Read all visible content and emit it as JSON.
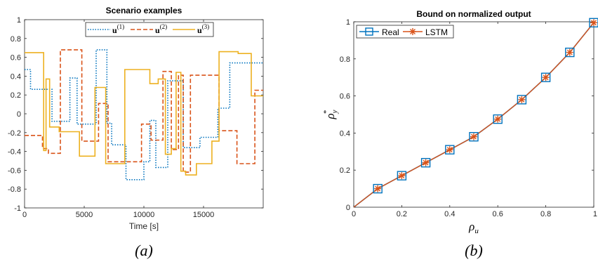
{
  "chart_data": [
    {
      "type": "line",
      "title": "Scenario examples",
      "xlabel": "Time [s]",
      "ylabel": "",
      "xlim": [
        0,
        20000
      ],
      "ylim": [
        -1,
        1
      ],
      "xticks": [
        "0",
        "5000",
        "10000",
        "15000"
      ],
      "yticks": [
        "-1",
        "-0.8",
        "-0.6",
        "-0.4",
        "-0.2",
        "0",
        "0.2",
        "0.4",
        "0.6",
        "0.8",
        "1"
      ],
      "grid": false,
      "legend": "top",
      "series": [
        {
          "name": "u(1)",
          "color": "#0072BD",
          "style": "dotted",
          "points": [
            [
              0,
              0.47
            ],
            [
              500,
              0.47
            ],
            [
              500,
              0.26
            ],
            [
              2300,
              0.26
            ],
            [
              2300,
              -0.08
            ],
            [
              3800,
              -0.08
            ],
            [
              3800,
              0.38
            ],
            [
              4400,
              0.38
            ],
            [
              4400,
              -0.11
            ],
            [
              6000,
              -0.11
            ],
            [
              6000,
              0.68
            ],
            [
              6900,
              0.68
            ],
            [
              6900,
              -0.1
            ],
            [
              7300,
              -0.1
            ],
            [
              7300,
              -0.33
            ],
            [
              8500,
              -0.33
            ],
            [
              8500,
              -0.7
            ],
            [
              10000,
              -0.7
            ],
            [
              10000,
              -0.51
            ],
            [
              10500,
              -0.51
            ],
            [
              10500,
              -0.07
            ],
            [
              11000,
              -0.07
            ],
            [
              11000,
              -0.57
            ],
            [
              12000,
              -0.57
            ],
            [
              12000,
              0.35
            ],
            [
              13300,
              0.35
            ],
            [
              13300,
              -0.36
            ],
            [
              14700,
              -0.36
            ],
            [
              14700,
              -0.25
            ],
            [
              16200,
              -0.25
            ],
            [
              16200,
              0.06
            ],
            [
              17200,
              0.06
            ],
            [
              17200,
              0.54
            ],
            [
              20000,
              0.54
            ]
          ]
        },
        {
          "name": "u(2)",
          "color": "#D95319",
          "style": "dashed",
          "points": [
            [
              0,
              -0.23
            ],
            [
              1500,
              -0.23
            ],
            [
              1500,
              -0.37
            ],
            [
              2000,
              -0.37
            ],
            [
              2000,
              -0.42
            ],
            [
              3000,
              -0.42
            ],
            [
              3000,
              0.68
            ],
            [
              4800,
              0.68
            ],
            [
              4800,
              -0.29
            ],
            [
              6200,
              -0.29
            ],
            [
              6200,
              0.11
            ],
            [
              7000,
              0.11
            ],
            [
              7000,
              -0.51
            ],
            [
              9800,
              -0.51
            ],
            [
              9800,
              -0.11
            ],
            [
              10600,
              -0.11
            ],
            [
              10600,
              -0.28
            ],
            [
              11600,
              -0.28
            ],
            [
              11600,
              0.45
            ],
            [
              12300,
              0.45
            ],
            [
              12300,
              -0.38
            ],
            [
              12900,
              -0.38
            ],
            [
              12900,
              0.41
            ],
            [
              13300,
              0.41
            ],
            [
              13300,
              -0.62
            ],
            [
              13900,
              -0.62
            ],
            [
              13900,
              0.41
            ],
            [
              16300,
              0.41
            ],
            [
              16300,
              -0.18
            ],
            [
              17800,
              -0.18
            ],
            [
              17800,
              -0.53
            ],
            [
              19300,
              -0.53
            ],
            [
              19300,
              0.25
            ],
            [
              20000,
              0.25
            ]
          ]
        },
        {
          "name": "u(3)",
          "color": "#EDB120",
          "style": "solid",
          "points": [
            [
              0,
              0.65
            ],
            [
              1600,
              0.65
            ],
            [
              1600,
              -0.39
            ],
            [
              1800,
              -0.39
            ],
            [
              1800,
              0.37
            ],
            [
              2100,
              0.37
            ],
            [
              2100,
              -0.14
            ],
            [
              2900,
              -0.14
            ],
            [
              2900,
              -0.19
            ],
            [
              4600,
              -0.19
            ],
            [
              4600,
              -0.45
            ],
            [
              5900,
              -0.45
            ],
            [
              5900,
              0.28
            ],
            [
              6800,
              0.28
            ],
            [
              6800,
              -0.53
            ],
            [
              8400,
              -0.53
            ],
            [
              8400,
              0.47
            ],
            [
              10500,
              0.47
            ],
            [
              10500,
              0.32
            ],
            [
              11200,
              0.32
            ],
            [
              11200,
              0.37
            ],
            [
              11800,
              0.37
            ],
            [
              11800,
              -0.43
            ],
            [
              12300,
              -0.43
            ],
            [
              12300,
              -0.37
            ],
            [
              12700,
              -0.37
            ],
            [
              12700,
              0.44
            ],
            [
              13100,
              0.44
            ],
            [
              13100,
              -0.61
            ],
            [
              13500,
              -0.61
            ],
            [
              13500,
              -0.65
            ],
            [
              14400,
              -0.65
            ],
            [
              14400,
              -0.53
            ],
            [
              15700,
              -0.53
            ],
            [
              15700,
              -0.29
            ],
            [
              16300,
              -0.29
            ],
            [
              16300,
              0.66
            ],
            [
              17900,
              0.66
            ],
            [
              17900,
              0.64
            ],
            [
              19000,
              0.64
            ],
            [
              19000,
              0.19
            ],
            [
              20000,
              0.19
            ]
          ]
        }
      ]
    },
    {
      "type": "line",
      "title": "Bound on normalized output",
      "xlabel": "ρu",
      "ylabel": "ρ*y",
      "xlim": [
        0,
        1
      ],
      "ylim": [
        0,
        1
      ],
      "xticks": [
        "0",
        "0.2",
        "0.4",
        "0.6",
        "0.8",
        "1"
      ],
      "yticks": [
        "0",
        "0.2",
        "0.4",
        "0.6",
        "0.8",
        "1"
      ],
      "grid": false,
      "legend": "top-left",
      "x": [
        0,
        0.1,
        0.2,
        0.3,
        0.4,
        0.5,
        0.6,
        0.7,
        0.8,
        0.9,
        1.0
      ],
      "series": [
        {
          "name": "Real",
          "color": "#0072BD",
          "marker": "square",
          "values": [
            0,
            0.1,
            0.17,
            0.24,
            0.31,
            0.38,
            0.475,
            0.58,
            0.7,
            0.835,
            0.995
          ]
        },
        {
          "name": "LSTM",
          "color": "#D95319",
          "marker": "asterisk",
          "values": [
            0,
            0.1,
            0.17,
            0.24,
            0.31,
            0.38,
            0.475,
            0.58,
            0.7,
            0.835,
            0.995
          ]
        }
      ]
    }
  ],
  "captions": {
    "a": "(a)",
    "b": "(b)"
  }
}
